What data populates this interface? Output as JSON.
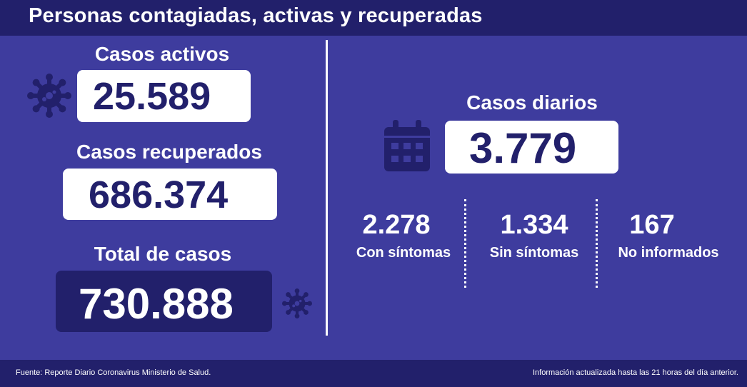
{
  "header": {
    "title": "Personas contagiadas, activas y recuperadas"
  },
  "left": {
    "active_label": "Casos activos",
    "active_value": "25.589",
    "recovered_label": "Casos recuperados",
    "recovered_value": "686.374",
    "total_label": "Total de casos",
    "total_value": "730.888"
  },
  "right": {
    "daily_label": "Casos diarios",
    "daily_value": "3.779",
    "breakdown": [
      {
        "value": "2.278",
        "label": "Con síntomas"
      },
      {
        "value": "1.334",
        "label": "Sin síntomas"
      },
      {
        "value": "167",
        "label": "No informados"
      }
    ]
  },
  "footer": {
    "source": "Fuente: Reporte Diario Coronavirus Ministerio de Salud.",
    "updated": "Información actualizada hasta las 21 horas  del día anterior."
  },
  "colors": {
    "background": "#3e3c9e",
    "dark_navy": "#22206b",
    "white": "#ffffff"
  },
  "icons": [
    "virus-icon",
    "calendar-icon"
  ]
}
